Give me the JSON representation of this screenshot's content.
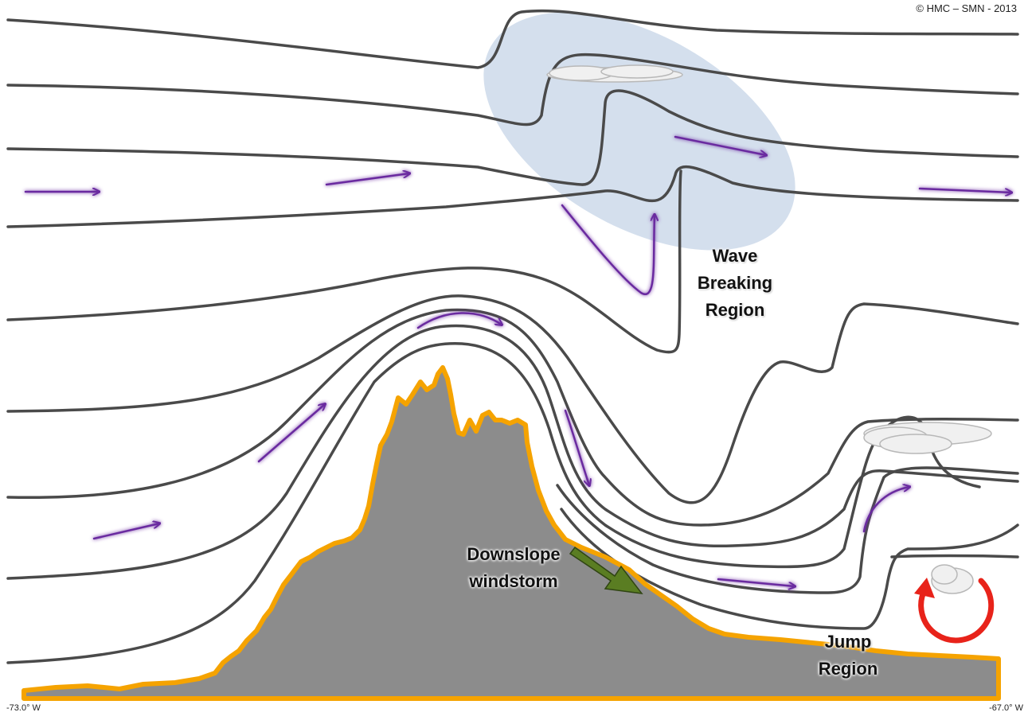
{
  "copyright": "© HMC – SMN - 2013",
  "axis": {
    "left_label": "-73.0° W",
    "right_label": "-67.0° W"
  },
  "labels": {
    "wave_breaking": [
      "Wave",
      "Breaking",
      "Region"
    ],
    "downslope": [
      "Downslope",
      "windstorm"
    ],
    "jump": [
      "Jump",
      "Region"
    ]
  },
  "colors": {
    "streamline": "#4a4a4a",
    "flow_arrow": "#6a2ca0",
    "terrain_fill": "#8c8c8c",
    "terrain_outline": "#f5a300",
    "wave_breaking_ellipse": "#c9d7e8",
    "downslope_arrow": "#5a7d22",
    "rotor_arrow": "#e8231a",
    "cloud": "#f0f0f0"
  },
  "icons": [
    "cloud-icon",
    "rotor-circular-arrow-icon",
    "flow-arrow-icon",
    "downslope-arrow-icon"
  ]
}
